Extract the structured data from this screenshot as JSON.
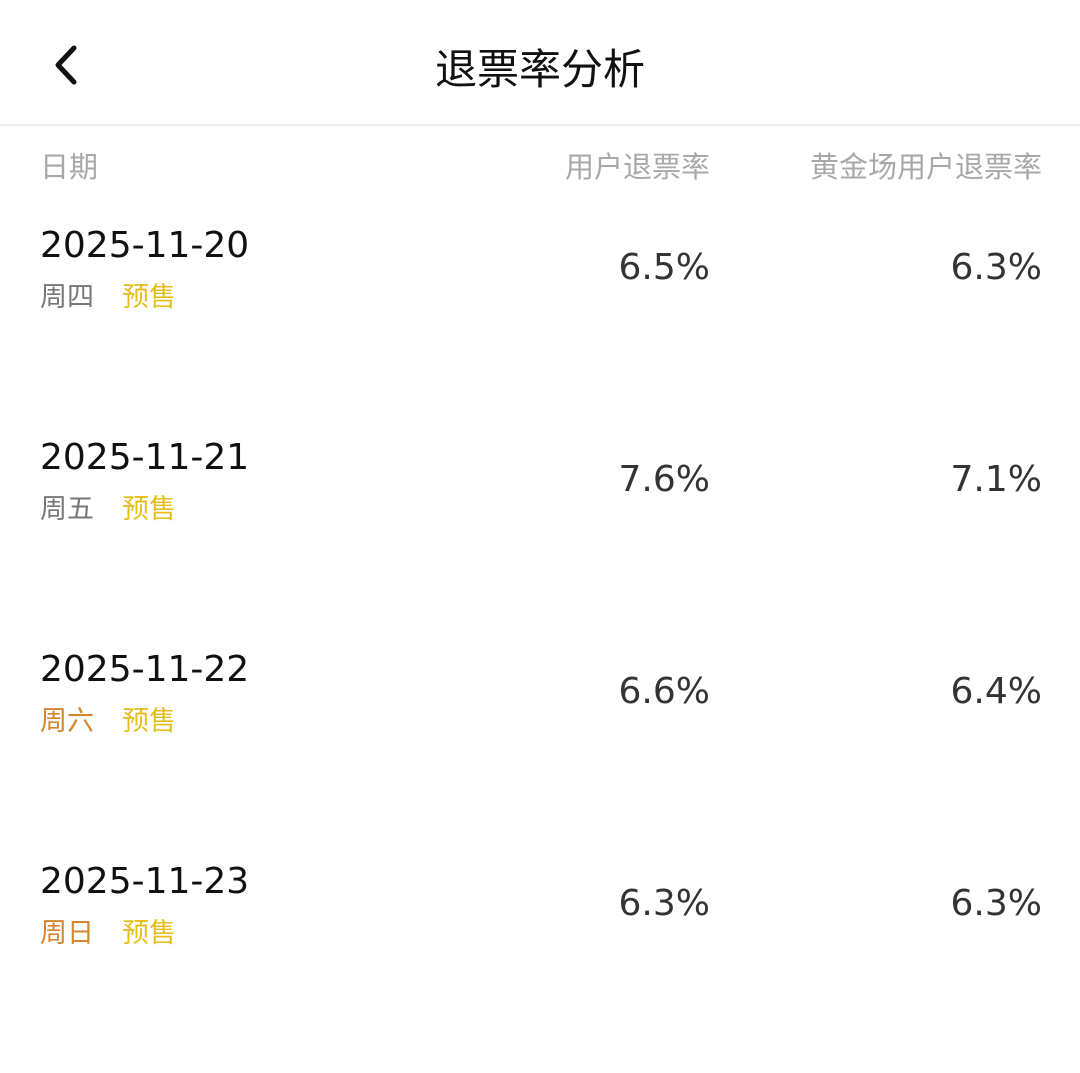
{
  "header": {
    "title": "退票率分析",
    "back_icon": "chevron-left-icon"
  },
  "columns": [
    "日期",
    "用户退票率",
    "黄金场用户退票率"
  ],
  "colors": {
    "weekday": "#777777",
    "weekend": "#d4862f",
    "presale": "#e6be1c"
  },
  "rows": [
    {
      "date": "2025-11-20",
      "weekday": "周四",
      "weekend": false,
      "tag": "预售",
      "user_rate": "6.5%",
      "golden_rate": "6.3%"
    },
    {
      "date": "2025-11-21",
      "weekday": "周五",
      "weekend": false,
      "tag": "预售",
      "user_rate": "7.6%",
      "golden_rate": "7.1%"
    },
    {
      "date": "2025-11-22",
      "weekday": "周六",
      "weekend": true,
      "tag": "预售",
      "user_rate": "6.6%",
      "golden_rate": "6.4%"
    },
    {
      "date": "2025-11-23",
      "weekday": "周日",
      "weekend": true,
      "tag": "预售",
      "user_rate": "6.3%",
      "golden_rate": "6.3%"
    }
  ]
}
